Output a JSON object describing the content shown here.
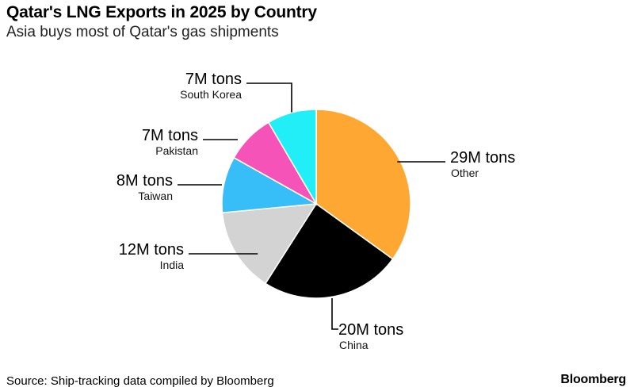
{
  "chart_data": {
    "type": "pie",
    "title": "Qatar's LNG Exports in 2025 by Country",
    "subtitle": "Asia buys most of Qatar's gas shipments",
    "unit": "million tons",
    "slices": [
      {
        "label": "Other",
        "value": 29,
        "value_label": "29M tons",
        "color": "#FFA733"
      },
      {
        "label": "China",
        "value": 20,
        "value_label": "20M tons",
        "color": "#000000"
      },
      {
        "label": "India",
        "value": 12,
        "value_label": "12M tons",
        "color": "#D3D3D3"
      },
      {
        "label": "Taiwan",
        "value": 8,
        "value_label": "8M tons",
        "color": "#37BEF8"
      },
      {
        "label": "Pakistan",
        "value": 7,
        "value_label": "7M tons",
        "color": "#F553B8"
      },
      {
        "label": "South Korea",
        "value": 7,
        "value_label": "7M tons",
        "color": "#22EEF7"
      }
    ],
    "start": "12 o'clock",
    "direction": "clockwise"
  },
  "footer": {
    "source": "Source: Ship-tracking data compiled by Bloomberg",
    "brand": "Bloomberg"
  }
}
